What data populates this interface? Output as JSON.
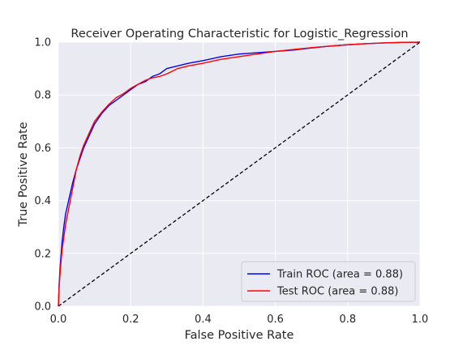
{
  "chart_data": {
    "type": "line",
    "title": "Receiver Operating Characteristic for Logistic_Regression",
    "xlabel": "False Positive Rate",
    "ylabel": "True Positive Rate",
    "xlim": [
      0.0,
      1.0
    ],
    "ylim": [
      0.0,
      1.0
    ],
    "xticks": [
      "0.0",
      "0.2",
      "0.4",
      "0.6",
      "0.8",
      "1.0"
    ],
    "yticks": [
      "0.0",
      "0.2",
      "0.4",
      "0.6",
      "0.8",
      "1.0"
    ],
    "grid": true,
    "legend_position": "lower-right",
    "background": "#eaeaf2",
    "series": [
      {
        "name": "Train ROC (area = 0.88)",
        "color": "#0000ff",
        "x": [
          0.0,
          0.002,
          0.005,
          0.01,
          0.015,
          0.02,
          0.03,
          0.04,
          0.05,
          0.06,
          0.07,
          0.08,
          0.09,
          0.1,
          0.12,
          0.14,
          0.16,
          0.18,
          0.2,
          0.22,
          0.24,
          0.26,
          0.28,
          0.3,
          0.33,
          0.36,
          0.4,
          0.45,
          0.5,
          0.55,
          0.6,
          0.65,
          0.7,
          0.75,
          0.8,
          0.85,
          0.9,
          0.95,
          1.0
        ],
        "y": [
          0.0,
          0.08,
          0.15,
          0.24,
          0.3,
          0.35,
          0.41,
          0.47,
          0.52,
          0.56,
          0.6,
          0.63,
          0.66,
          0.69,
          0.73,
          0.76,
          0.78,
          0.8,
          0.82,
          0.84,
          0.85,
          0.87,
          0.88,
          0.9,
          0.91,
          0.92,
          0.93,
          0.945,
          0.955,
          0.96,
          0.965,
          0.97,
          0.978,
          0.985,
          0.99,
          0.994,
          0.997,
          0.999,
          1.0
        ]
      },
      {
        "name": "Test ROC (area = 0.88)",
        "color": "#ff0000",
        "x": [
          0.0,
          0.002,
          0.005,
          0.01,
          0.015,
          0.02,
          0.03,
          0.04,
          0.05,
          0.06,
          0.07,
          0.08,
          0.09,
          0.1,
          0.12,
          0.14,
          0.16,
          0.18,
          0.2,
          0.22,
          0.24,
          0.26,
          0.28,
          0.3,
          0.33,
          0.36,
          0.4,
          0.45,
          0.5,
          0.55,
          0.6,
          0.65,
          0.7,
          0.75,
          0.8,
          0.85,
          0.9,
          0.95,
          1.0
        ],
        "y": [
          0.0,
          0.07,
          0.13,
          0.21,
          0.26,
          0.31,
          0.38,
          0.45,
          0.52,
          0.57,
          0.61,
          0.64,
          0.67,
          0.7,
          0.735,
          0.765,
          0.79,
          0.805,
          0.825,
          0.84,
          0.855,
          0.865,
          0.87,
          0.88,
          0.9,
          0.91,
          0.92,
          0.935,
          0.945,
          0.955,
          0.965,
          0.972,
          0.979,
          0.985,
          0.99,
          0.994,
          0.997,
          0.999,
          1.0
        ]
      }
    ],
    "reference_line": {
      "x": [
        0.0,
        1.0
      ],
      "y": [
        0.0,
        1.0
      ],
      "color": "#000000",
      "style": "dashed"
    }
  }
}
